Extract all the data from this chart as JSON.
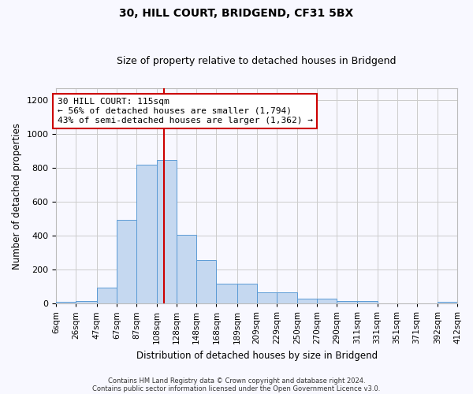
{
  "title1": "30, HILL COURT, BRIDGEND, CF31 5BX",
  "title2": "Size of property relative to detached houses in Bridgend",
  "xlabel": "Distribution of detached houses by size in Bridgend",
  "ylabel": "Number of detached properties",
  "footer1": "Contains HM Land Registry data © Crown copyright and database right 2024.",
  "footer2": "Contains public sector information licensed under the Open Government Licence v3.0.",
  "annotation_title": "30 HILL COURT: 115sqm",
  "annotation_line1": "← 56% of detached houses are smaller (1,794)",
  "annotation_line2": "43% of semi-detached houses are larger (1,362) →",
  "bin_edges": [
    6,
    26,
    47,
    67,
    87,
    108,
    128,
    148,
    168,
    189,
    209,
    229,
    250,
    270,
    290,
    311,
    331,
    351,
    371,
    392,
    412
  ],
  "bar_heights": [
    8,
    12,
    92,
    495,
    820,
    845,
    405,
    255,
    115,
    115,
    65,
    65,
    30,
    28,
    12,
    12,
    0,
    0,
    0,
    8
  ],
  "bar_color": "#c5d8f0",
  "bar_edge_color": "#5b9bd5",
  "vline_color": "#cc0000",
  "vline_x": 115,
  "ylim": [
    0,
    1270
  ],
  "yticks": [
    0,
    200,
    400,
    600,
    800,
    1000,
    1200
  ],
  "annotation_box_color": "#cc0000",
  "annotation_box_facecolor": "#ffffff",
  "grid_color": "#cccccc",
  "background_color": "#f8f8ff",
  "title_fontsize": 10,
  "subtitle_fontsize": 9
}
